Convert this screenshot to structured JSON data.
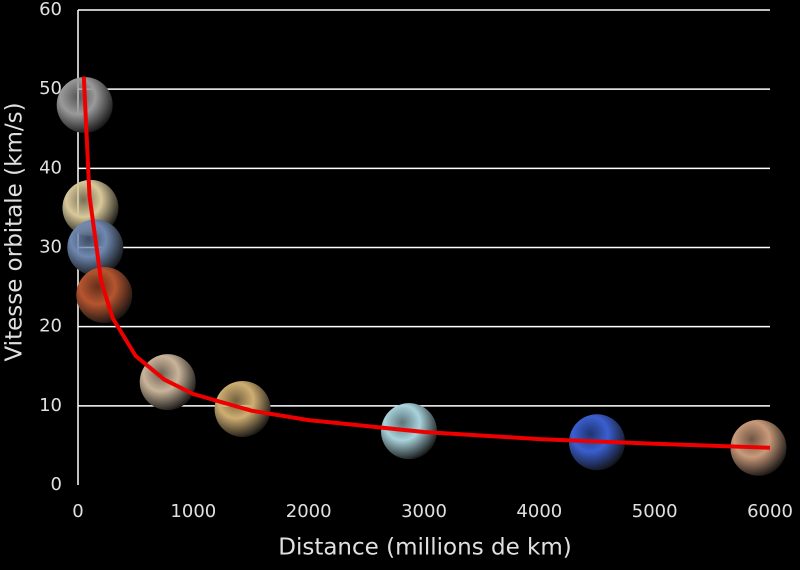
{
  "chart_data": {
    "type": "scatter",
    "xlabel": "Distance (millions de km)",
    "ylabel": "Vitesse orbitale (km/s)",
    "xlim": [
      0,
      6000
    ],
    "ylim": [
      0,
      60
    ],
    "xticks": [
      0,
      1000,
      2000,
      3000,
      4000,
      5000,
      6000
    ],
    "yticks": [
      0,
      10,
      20,
      30,
      40,
      50,
      60
    ],
    "grid": true,
    "series": [
      {
        "type": "scatter",
        "x": [
          58,
          108,
          150,
          228,
          778,
          1427,
          2870,
          4500,
          5900
        ],
        "values": [
          48,
          35,
          30,
          24,
          13,
          9.6,
          6.8,
          5.4,
          4.7
        ],
        "colors": [
          "#9a9a9a",
          "#d8c89a",
          "#6f88b0",
          "#b5552f",
          "#c9b49a",
          "#cfae72",
          "#a9d3dc",
          "#3a5fd0",
          "#c99a7a"
        ]
      },
      {
        "type": "line",
        "color": "#ee0000",
        "x": [
          50,
          100,
          200,
          300,
          500,
          750,
          1000,
          1500,
          2000,
          3000,
          4000,
          5000,
          6000
        ],
        "values": [
          51.6,
          36.5,
          25.8,
          21.1,
          16.3,
          13.3,
          11.5,
          9.4,
          8.2,
          6.7,
          5.8,
          5.2,
          4.7
        ]
      }
    ]
  }
}
